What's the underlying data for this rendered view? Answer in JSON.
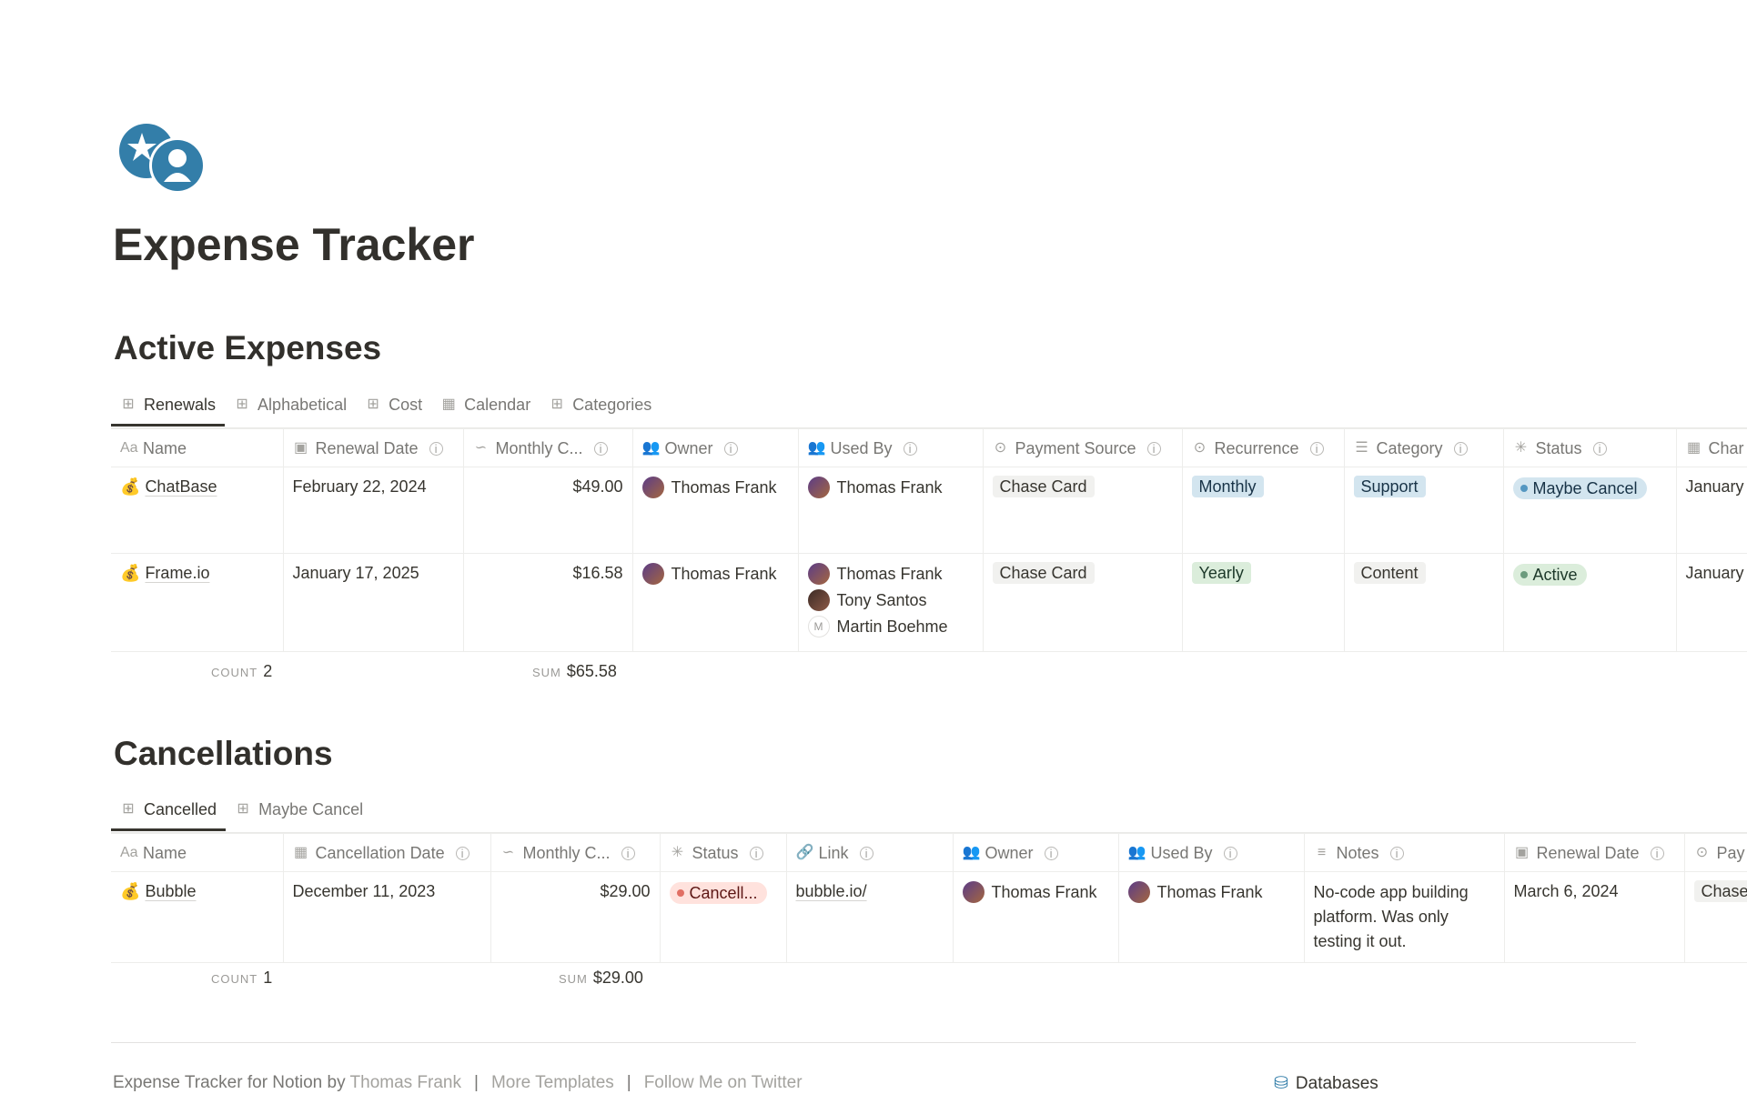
{
  "page": {
    "title": "Expense Tracker",
    "icon": "coins-icon",
    "accent": "#337ea9"
  },
  "active": {
    "heading": "Active Expenses",
    "tabs": [
      "Renewals",
      "Alphabetical",
      "Cost",
      "Calendar",
      "Categories"
    ],
    "columns": [
      "Name",
      "Renewal Date",
      "Monthly C...",
      "Owner",
      "Used By",
      "Payment Source",
      "Recurrence",
      "Category",
      "Status",
      "Char"
    ],
    "rows": [
      {
        "name": "ChatBase",
        "renewal": "February 22, 2024",
        "cost": "$49.00",
        "owner": "Thomas Frank",
        "used_by": [
          "Thomas Frank"
        ],
        "payment": "Chase Card",
        "recurrence": "Monthly",
        "category": "Support",
        "status": "Maybe Cancel",
        "charge": "January"
      },
      {
        "name": "Frame.io",
        "renewal": "January 17, 2025",
        "cost": "$16.58",
        "owner": "Thomas Frank",
        "used_by": [
          "Thomas Frank",
          "Tony Santos",
          "Martin Boehme"
        ],
        "payment": "Chase Card",
        "recurrence": "Yearly",
        "category": "Content",
        "status": "Active",
        "charge": "January"
      }
    ],
    "count_label": "COUNT",
    "count": "2",
    "sum_label": "SUM",
    "sum": "$65.58"
  },
  "cancel": {
    "heading": "Cancellations",
    "tabs": [
      "Cancelled",
      "Maybe Cancel"
    ],
    "columns": [
      "Name",
      "Cancellation Date",
      "Monthly C...",
      "Status",
      "Link",
      "Owner",
      "Used By",
      "Notes",
      "Renewal Date",
      "Pay"
    ],
    "rows": [
      {
        "name": "Bubble",
        "cancel_date": "December 11, 2023",
        "cost": "$29.00",
        "status": "Cancell...",
        "link": "bubble.io/",
        "owner": "Thomas Frank",
        "used_by": "Thomas Frank",
        "notes": "No-code app building platform. Was only testing it out.",
        "renewal": "March 6, 2024",
        "payment": "Chase"
      }
    ],
    "count_label": "COUNT",
    "count": "1",
    "sum_label": "SUM",
    "sum": "$29.00"
  },
  "footer": {
    "prefix": "Expense Tracker for Notion by",
    "author": "Thomas Frank",
    "sep": "|",
    "more": "More Templates",
    "twitter": "Follow Me on Twitter",
    "databases": "Databases"
  },
  "avatar_initial": "M"
}
